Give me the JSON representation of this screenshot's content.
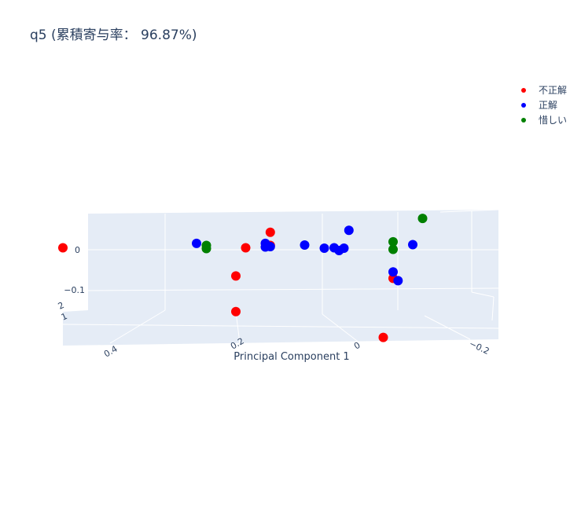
{
  "chart_data": {
    "type": "scatter",
    "title": "q5 (累積寄与率： 96.87%)",
    "xlabel": "Principal Component 1",
    "x_ticks": [
      {
        "value": 0.4,
        "label": "0.4"
      },
      {
        "value": 0.2,
        "label": "0.2"
      },
      {
        "value": 0,
        "label": "0"
      },
      {
        "value": -0.2,
        "label": "−0.2"
      }
    ],
    "z_ticks": [
      {
        "value": 0,
        "label": "0"
      },
      {
        "value": -0.1,
        "label": "−0.1"
      }
    ],
    "clipped_tick_labels": [
      "2",
      "1"
    ],
    "legend_position": "top-right",
    "series": [
      {
        "name": "不正解",
        "color": "#ff0000",
        "points": [
          {
            "x": 0.52,
            "y": 0.0,
            "z": 0.001
          },
          {
            "x": 0.09,
            "y": 0.0,
            "z": 0.04
          },
          {
            "x": 0.14,
            "y": 0.0,
            "z": 0.001
          },
          {
            "x": 0.16,
            "y": 0.0,
            "z": -0.07
          },
          {
            "x": 0.09,
            "y": 0.0,
            "z": 0.007
          },
          {
            "x": 0.16,
            "y": 0.0,
            "z": -0.16
          },
          {
            "x": -0.16,
            "y": 0.0,
            "z": -0.076
          },
          {
            "x": -0.14,
            "y": 0.0,
            "z": -0.225
          }
        ]
      },
      {
        "name": "正解",
        "color": "#0000ff",
        "points": [
          {
            "x": 0.24,
            "y": 0.0,
            "z": 0.012
          },
          {
            "x": 0.1,
            "y": 0.0,
            "z": 0.012
          },
          {
            "x": 0.1,
            "y": 0.0,
            "z": 0.003
          },
          {
            "x": 0.09,
            "y": 0.0,
            "z": 0.004
          },
          {
            "x": 0.02,
            "y": 0.0,
            "z": 0.008
          },
          {
            "x": -0.02,
            "y": 0.0,
            "z": 0.0
          },
          {
            "x": -0.04,
            "y": 0.0,
            "z": 0.001
          },
          {
            "x": -0.05,
            "y": 0.0,
            "z": -0.006
          },
          {
            "x": -0.06,
            "y": 0.0,
            "z": 0.0
          },
          {
            "x": -0.07,
            "y": 0.0,
            "z": 0.045
          },
          {
            "x": -0.16,
            "y": 0.0,
            "z": -0.06
          },
          {
            "x": -0.17,
            "y": 0.0,
            "z": -0.082
          },
          {
            "x": -0.2,
            "y": 0.0,
            "z": 0.009
          }
        ]
      },
      {
        "name": "惜しい",
        "color": "#008000",
        "points": [
          {
            "x": 0.22,
            "y": 0.0,
            "z": 0.007
          },
          {
            "x": 0.22,
            "y": 0.0,
            "z": -0.001
          },
          {
            "x": -0.16,
            "y": 0.0,
            "z": 0.016
          },
          {
            "x": -0.16,
            "y": 0.0,
            "z": -0.003
          },
          {
            "x": -0.22,
            "y": 0.0,
            "z": 0.075
          }
        ]
      }
    ]
  }
}
